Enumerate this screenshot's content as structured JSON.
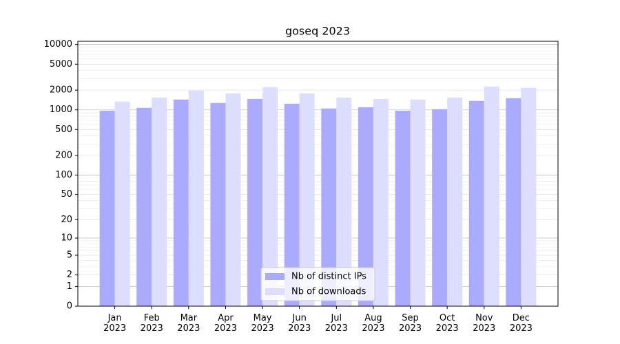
{
  "chart_data": {
    "type": "bar",
    "title": "goseq 2023",
    "categories": [
      "Jan\n2023",
      "Feb\n2023",
      "Mar\n2023",
      "Apr\n2023",
      "May\n2023",
      "Jun\n2023",
      "Jul\n2023",
      "Aug\n2023",
      "Sep\n2023",
      "Oct\n2023",
      "Nov\n2023",
      "Dec\n2023"
    ],
    "series": [
      {
        "name": "Nb of distinct IPs",
        "color": "#aaaaff",
        "values": [
          970,
          1075,
          1440,
          1275,
          1470,
          1240,
          1050,
          1100,
          970,
          1025,
          1370,
          1510
        ]
      },
      {
        "name": "Nb of downloads",
        "color": "#ddddff",
        "values": [
          1340,
          1545,
          1970,
          1790,
          2220,
          1790,
          1545,
          1470,
          1440,
          1545,
          2280,
          2170
        ]
      }
    ],
    "yscale": "log1p",
    "ylim": [
      0,
      11200
    ],
    "yticks": [
      0,
      1,
      2,
      5,
      10,
      20,
      50,
      100,
      200,
      500,
      1000,
      2000,
      5000,
      10000
    ],
    "grid": true,
    "legend": "lower center"
  }
}
